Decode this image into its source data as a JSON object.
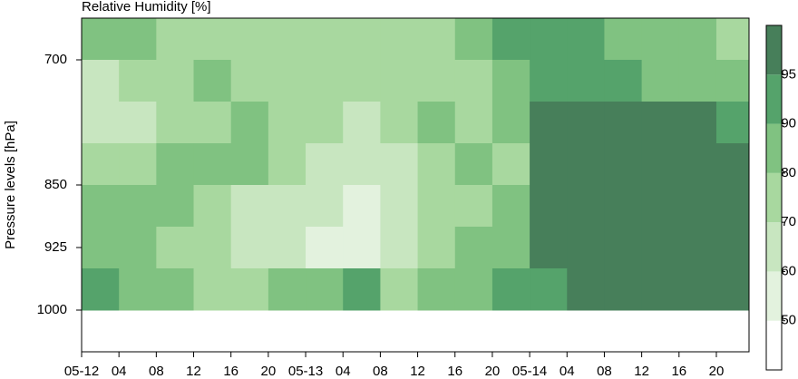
{
  "chart_data": {
    "type": "filled-contour",
    "title": "Relative Humidity [%]",
    "y_label": "Pressure levels [hPa]",
    "xlim": [
      0,
      71.5
    ],
    "ylim": [
      1050,
      650
    ],
    "xticks": [
      {
        "value": 0,
        "label": "05-12"
      },
      {
        "value": 4,
        "label": "04"
      },
      {
        "value": 8,
        "label": "08"
      },
      {
        "value": 12,
        "label": "12"
      },
      {
        "value": 16,
        "label": "16"
      },
      {
        "value": 20,
        "label": "20"
      },
      {
        "value": 24,
        "label": "05-13"
      },
      {
        "value": 28,
        "label": "04"
      },
      {
        "value": 32,
        "label": "08"
      },
      {
        "value": 36,
        "label": "12"
      },
      {
        "value": 40,
        "label": "16"
      },
      {
        "value": 44,
        "label": "20"
      },
      {
        "value": 48,
        "label": "05-14"
      },
      {
        "value": 52,
        "label": "04"
      },
      {
        "value": 56,
        "label": "08"
      },
      {
        "value": 60,
        "label": "12"
      },
      {
        "value": 64,
        "label": "16"
      },
      {
        "value": 68,
        "label": "20"
      }
    ],
    "yticks": [
      700,
      850,
      925,
      1000
    ],
    "x_edges": [
      0,
      4,
      8,
      12,
      16,
      20,
      24,
      28,
      32,
      36,
      40,
      44,
      48,
      52,
      56,
      60,
      64,
      68,
      72
    ],
    "y_edges": [
      650,
      700,
      750,
      800,
      850,
      900,
      950,
      1000
    ],
    "z": [
      [
        85,
        80,
        78,
        75,
        72,
        78,
        76,
        75,
        75,
        74,
        82,
        92,
        90,
        93,
        88,
        82,
        85,
        75
      ],
      [
        68,
        72,
        78,
        82,
        78,
        72,
        70,
        75,
        75,
        72,
        78,
        88,
        92,
        92,
        90,
        88,
        85,
        80
      ],
      [
        62,
        65,
        72,
        78,
        80,
        78,
        72,
        68,
        75,
        82,
        76,
        85,
        95,
        96,
        96,
        96,
        95,
        90
      ],
      [
        75,
        78,
        80,
        85,
        82,
        75,
        65,
        60,
        65,
        72,
        82,
        78,
        95,
        96,
        96,
        96,
        96,
        96
      ],
      [
        82,
        85,
        80,
        72,
        68,
        65,
        60,
        55,
        62,
        75,
        78,
        80,
        96,
        96,
        96,
        96,
        96,
        96
      ],
      [
        80,
        82,
        78,
        72,
        65,
        62,
        58,
        58,
        65,
        72,
        80,
        82,
        96,
        96,
        96,
        96,
        96,
        96
      ],
      [
        90,
        88,
        82,
        75,
        70,
        80,
        88,
        92,
        72,
        80,
        88,
        92,
        90,
        96,
        96,
        96,
        96,
        96
      ]
    ],
    "levels": [
      40,
      50,
      60,
      70,
      80,
      90,
      95,
      100
    ],
    "colors": [
      "#ffffff",
      "#e3f2de",
      "#c8e6c0",
      "#a8d89f",
      "#80c281",
      "#55a36b",
      "#477f5a"
    ],
    "colorbar_ticks": [
      50,
      60,
      70,
      80,
      90,
      95
    ]
  }
}
